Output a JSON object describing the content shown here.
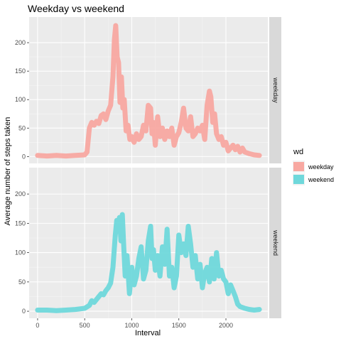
{
  "chart_data": {
    "type": "line",
    "title": "Weekday vs weekend",
    "xlabel": "Interval",
    "ylabel": "Average number of steps taken",
    "xlim": [
      -90,
      2445
    ],
    "ylim": [
      -12,
      245
    ],
    "x_ticks": [
      0,
      500,
      1000,
      1500,
      2000
    ],
    "y_ticks": [
      0,
      50,
      100,
      150,
      200
    ],
    "grid": true,
    "facets": [
      "weekday",
      "weekend"
    ],
    "legend": {
      "title": "wd",
      "position": "right",
      "entries": [
        "weekday",
        "weekend"
      ]
    },
    "series": [
      {
        "name": "weekday",
        "color": "#f8a8a1",
        "x": [
          0,
          100,
          200,
          300,
          400,
          500,
          525,
          550,
          575,
          600,
          625,
          650,
          675,
          700,
          725,
          750,
          775,
          800,
          815,
          830,
          845,
          860,
          875,
          890,
          905,
          920,
          940,
          960,
          980,
          1000,
          1025,
          1050,
          1075,
          1100,
          1125,
          1150,
          1175,
          1200,
          1215,
          1230,
          1250,
          1275,
          1300,
          1325,
          1350,
          1375,
          1400,
          1425,
          1450,
          1475,
          1500,
          1525,
          1550,
          1575,
          1600,
          1625,
          1650,
          1675,
          1700,
          1725,
          1750,
          1775,
          1800,
          1825,
          1840,
          1860,
          1880,
          1900,
          1925,
          1950,
          1975,
          2000,
          2025,
          2050,
          2075,
          2100,
          2125,
          2150,
          2175,
          2200,
          2250,
          2300,
          2355
        ],
        "values": [
          2,
          1,
          2,
          1,
          2,
          3,
          8,
          50,
          60,
          55,
          62,
          58,
          72,
          75,
          65,
          80,
          90,
          140,
          205,
          230,
          175,
          165,
          95,
          140,
          85,
          100,
          45,
          55,
          30,
          35,
          25,
          40,
          30,
          35,
          55,
          45,
          90,
          85,
          40,
          60,
          20,
          70,
          35,
          50,
          30,
          45,
          35,
          50,
          20,
          35,
          42,
          60,
          85,
          50,
          45,
          70,
          35,
          40,
          50,
          45,
          55,
          30,
          90,
          115,
          105,
          60,
          75,
          40,
          30,
          35,
          20,
          25,
          10,
          15,
          20,
          12,
          18,
          8,
          15,
          8,
          5,
          3,
          2
        ]
      },
      {
        "name": "weekend",
        "color": "#6fd8db",
        "x": [
          0,
          100,
          200,
          300,
          400,
          500,
          550,
          575,
          600,
          625,
          650,
          675,
          700,
          725,
          750,
          775,
          800,
          825,
          840,
          855,
          870,
          885,
          900,
          915,
          930,
          950,
          975,
          1000,
          1025,
          1050,
          1075,
          1100,
          1125,
          1150,
          1175,
          1200,
          1215,
          1230,
          1250,
          1275,
          1300,
          1325,
          1350,
          1375,
          1400,
          1425,
          1450,
          1475,
          1500,
          1525,
          1550,
          1575,
          1600,
          1625,
          1650,
          1675,
          1700,
          1725,
          1750,
          1775,
          1800,
          1825,
          1850,
          1875,
          1900,
          1925,
          1950,
          1975,
          2000,
          2025,
          2050,
          2075,
          2100,
          2125,
          2150,
          2200,
          2250,
          2300,
          2355
        ],
        "values": [
          2,
          2,
          1,
          2,
          3,
          5,
          10,
          18,
          15,
          20,
          25,
          30,
          28,
          35,
          40,
          48,
          75,
          130,
          155,
          145,
          160,
          120,
          165,
          110,
          60,
          95,
          30,
          75,
          45,
          60,
          90,
          110,
          55,
          70,
          120,
          145,
          90,
          105,
          70,
          95,
          60,
          110,
          80,
          140,
          60,
          75,
          40,
          60,
          130,
          100,
          115,
          95,
          145,
          115,
          75,
          95,
          55,
          80,
          40,
          65,
          75,
          50,
          90,
          55,
          100,
          60,
          70,
          55,
          50,
          30,
          45,
          35,
          25,
          12,
          8,
          5,
          3,
          2,
          3
        ]
      }
    ]
  }
}
